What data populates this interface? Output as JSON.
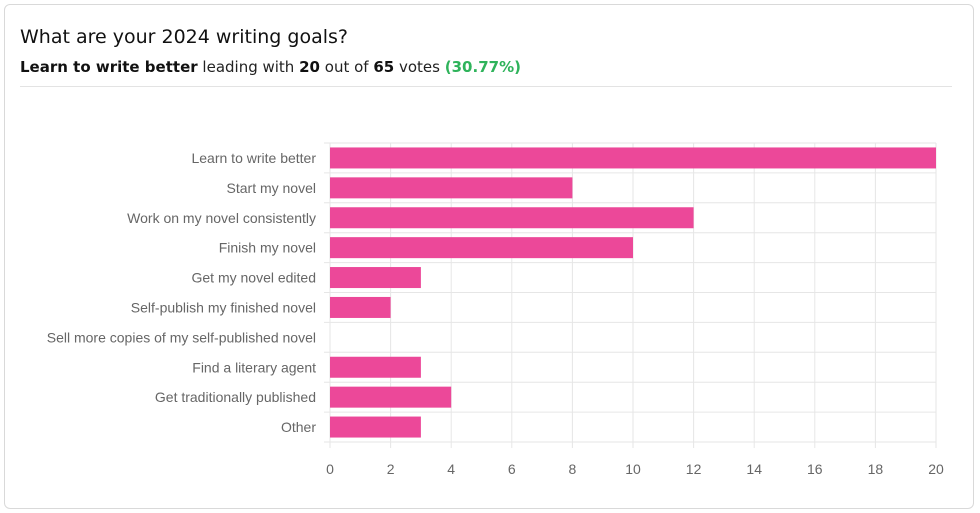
{
  "header": {
    "question": "What are your 2024 writing goals?",
    "leader": "Learn to write better",
    "leading_text": "leading with",
    "leader_votes": "20",
    "out_of_text": "out of",
    "total_votes": "65",
    "votes_text": "votes",
    "percent": "(30.77%)"
  },
  "colors": {
    "bar": "#ec4899",
    "grid": "#e6e6e6",
    "axis_text": "#666666",
    "percent_green": "#2fb35b"
  },
  "chart_data": {
    "type": "bar",
    "orientation": "horizontal",
    "categories": [
      "Learn to write better",
      "Start my novel",
      "Work on my novel consistently",
      "Finish my novel",
      "Get my novel edited",
      "Self-publish my finished novel",
      "Sell more copies of my self-published novel",
      "Find a literary agent",
      "Get traditionally published",
      "Other"
    ],
    "values": [
      20,
      8,
      12,
      10,
      3,
      2,
      0,
      3,
      4,
      3
    ],
    "xlim": [
      0,
      20
    ],
    "xticks": [
      "0",
      "2",
      "4",
      "6",
      "8",
      "10",
      "12",
      "14",
      "16",
      "18",
      "20"
    ],
    "grid": true,
    "legend": "none"
  }
}
